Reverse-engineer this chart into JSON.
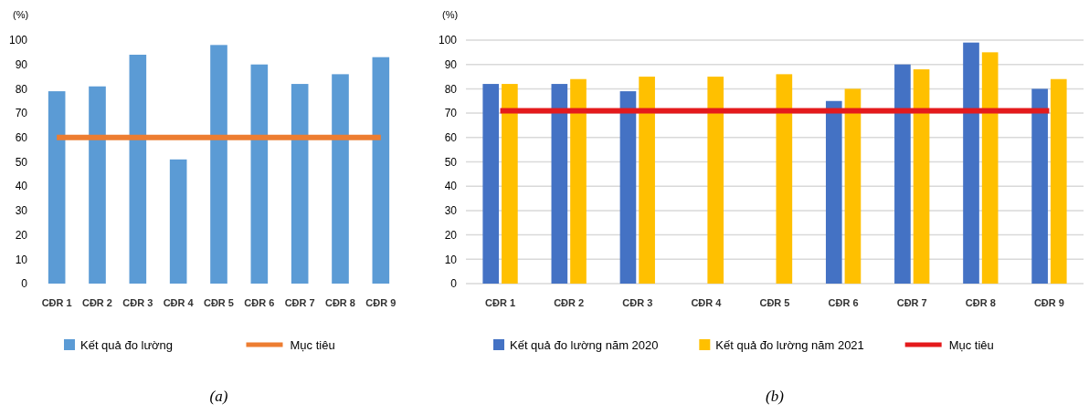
{
  "chart_data": [
    {
      "type": "bar",
      "ylabel": "(%)",
      "categories": [
        "CĐR 1",
        "CĐR 2",
        "CĐR 3",
        "CĐR 4",
        "CĐR 5",
        "CĐR 6",
        "CĐR 7",
        "CĐR 8",
        "CĐR 9"
      ],
      "series": [
        {
          "name": "Kết quả đo lường",
          "color": "#5b9bd5",
          "values": [
            79,
            81,
            94,
            51,
            98,
            90,
            82,
            86,
            93
          ]
        },
        {
          "name": "Mục tiêu",
          "type": "line",
          "color": "#ed7d31",
          "values": [
            60,
            60,
            60,
            60,
            60,
            60,
            60,
            60,
            60
          ]
        }
      ],
      "ylim": [
        0,
        100
      ],
      "yticks": [
        0,
        10,
        20,
        30,
        40,
        50,
        60,
        70,
        80,
        90,
        100
      ],
      "legend": "bottom",
      "annotations": [
        "(a)"
      ]
    },
    {
      "type": "bar",
      "ylabel": "(%)",
      "categories": [
        "CĐR 1",
        "CĐR 2",
        "CĐR 3",
        "CĐR 4",
        "CĐR 5",
        "CĐR 6",
        "CĐR 7",
        "CĐR 8",
        "CĐR 9"
      ],
      "series": [
        {
          "name": "Kết quả đo lường năm 2020",
          "color": "#4472c4",
          "values": [
            82,
            82,
            79,
            null,
            null,
            75,
            90,
            99,
            80
          ]
        },
        {
          "name": "Kết quả đo lường năm 2021",
          "color": "#ffc000",
          "values": [
            82,
            84,
            85,
            85,
            86,
            80,
            88,
            95,
            84
          ]
        },
        {
          "name": "Mục tiêu",
          "type": "line",
          "color": "#e41a1c",
          "values": [
            71,
            71,
            71,
            71,
            71,
            71,
            71,
            71,
            71
          ]
        }
      ],
      "ylim": [
        0,
        100
      ],
      "yticks": [
        0,
        10,
        20,
        30,
        40,
        50,
        60,
        70,
        80,
        90,
        100
      ],
      "grid": "y",
      "legend": "bottom",
      "annotations": [
        "(b)"
      ]
    }
  ]
}
